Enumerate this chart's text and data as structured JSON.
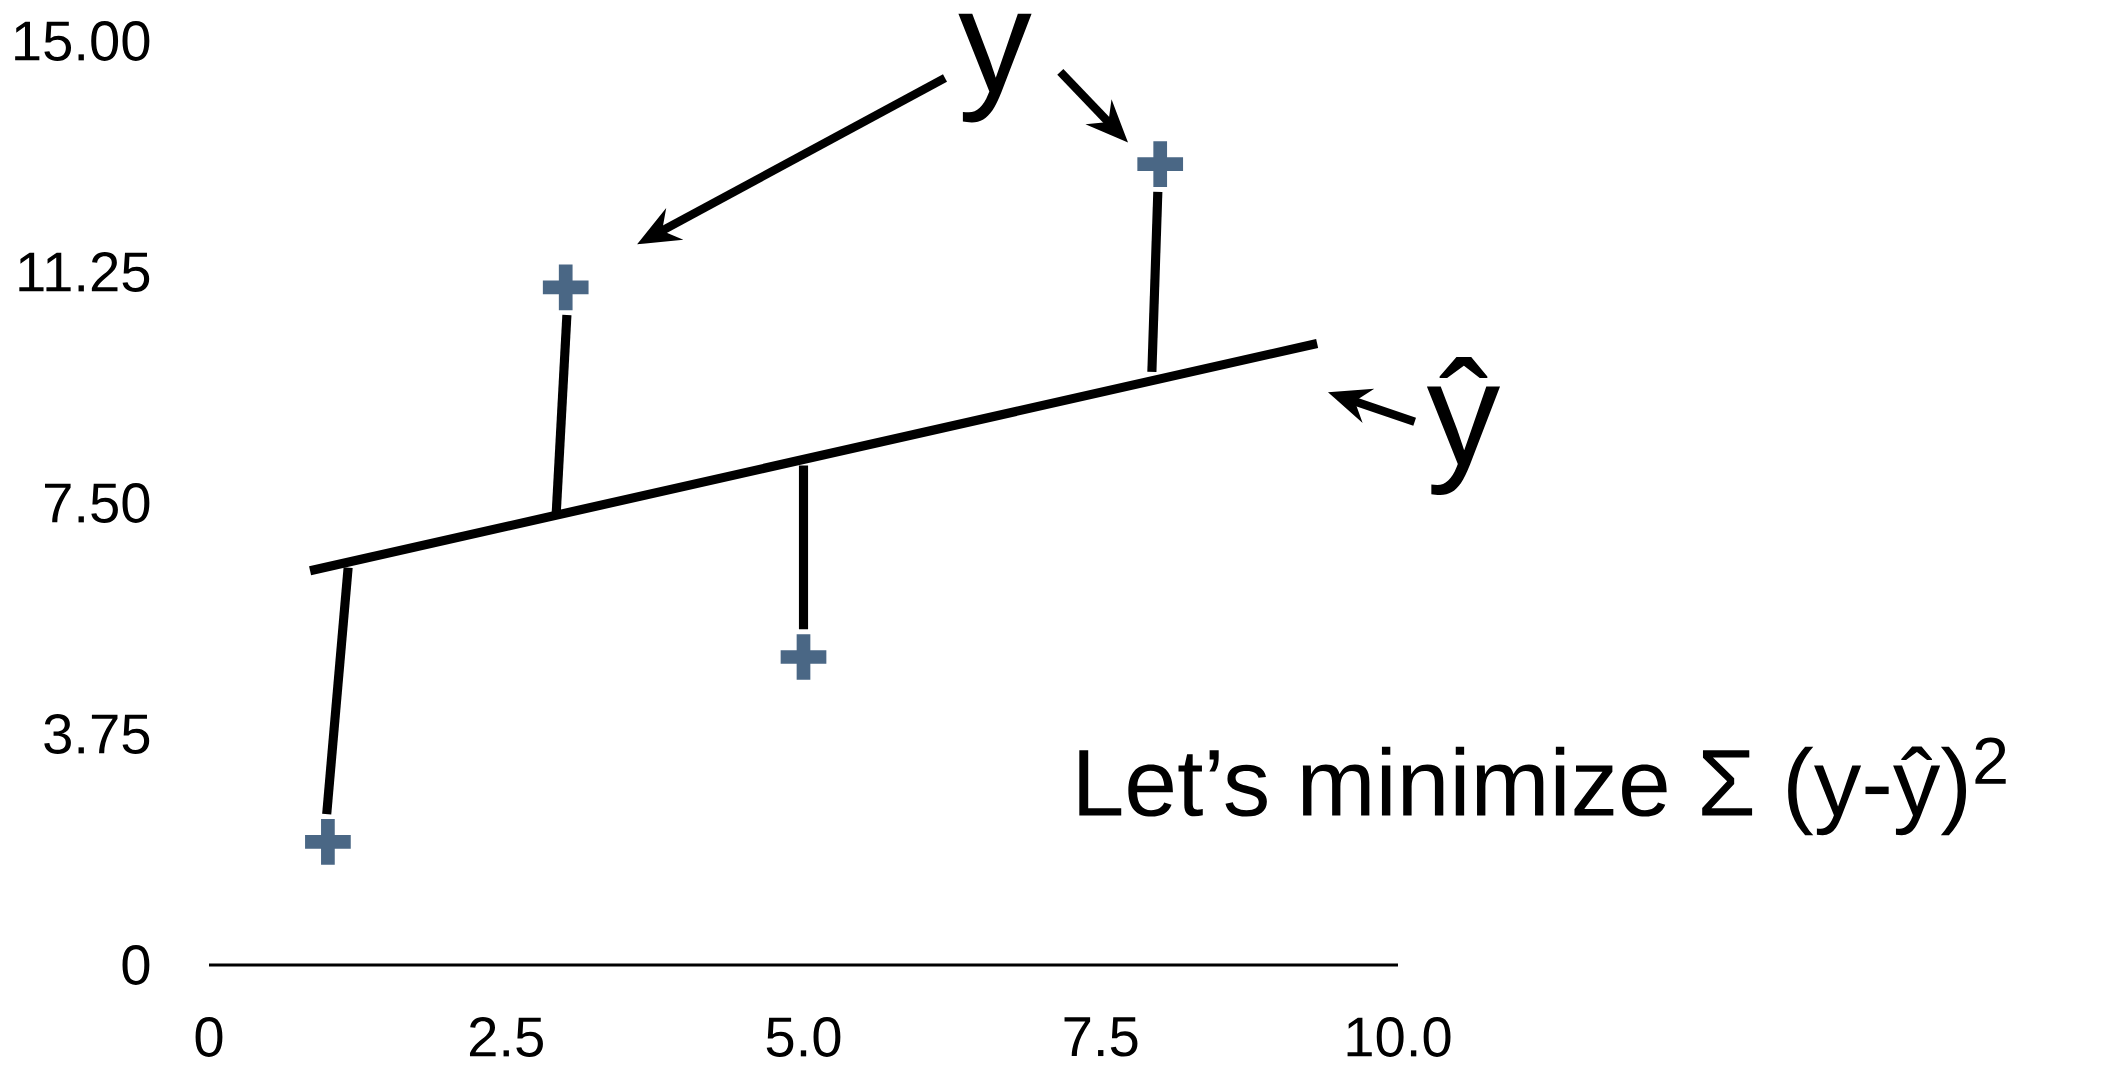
{
  "chart_data": {
    "type": "scatter",
    "marker": "cross",
    "xlim": [
      0,
      10
    ],
    "ylim": [
      0,
      15
    ],
    "xticks": [
      0,
      2.5,
      {
        "value": 5,
        "label": "5.0"
      },
      7.5,
      {
        "value": 10,
        "label": "10.0"
      }
    ],
    "yticks": [
      0,
      3.75,
      {
        "value": 7.5,
        "label": "7.50"
      },
      11.25,
      {
        "value": 15,
        "label": "15.00"
      }
    ],
    "annotations": [
      "y",
      "ŷ",
      "Let’s minimize Σ (y-ŷ)$^{2}$"
    ],
    "series": [
      {
        "color": "#4a6785",
        "x": [
          1,
          3,
          5,
          8
        ],
        "values": [
          2,
          11,
          5,
          13
        ]
      },
      {
        "type": "line",
        "marker": "none",
        "color": "#000000",
        "x": [
          0.85,
          9.32
        ],
        "values": [
          6.4,
          10.09
        ]
      },
      {
        "type": "line",
        "marker": "none",
        "color": "#000000",
        "x": [
          0.99,
          1.17
        ],
        "values": [
          2.45,
          6.45
        ]
      },
      {
        "type": "line",
        "marker": "none",
        "color": "#000000",
        "x": [
          2.92,
          3.01
        ],
        "values": [
          7.32,
          10.55
        ]
      },
      {
        "type": "line",
        "marker": "none",
        "color": "#000000",
        "x": [
          5.0,
          5.0
        ],
        "values": [
          8.11,
          5.45
        ]
      },
      {
        "type": "line",
        "marker": "none",
        "color": "#000000",
        "x": [
          7.93,
          7.98
        ],
        "values": [
          9.63,
          12.55
        ]
      }
    ]
  }
}
